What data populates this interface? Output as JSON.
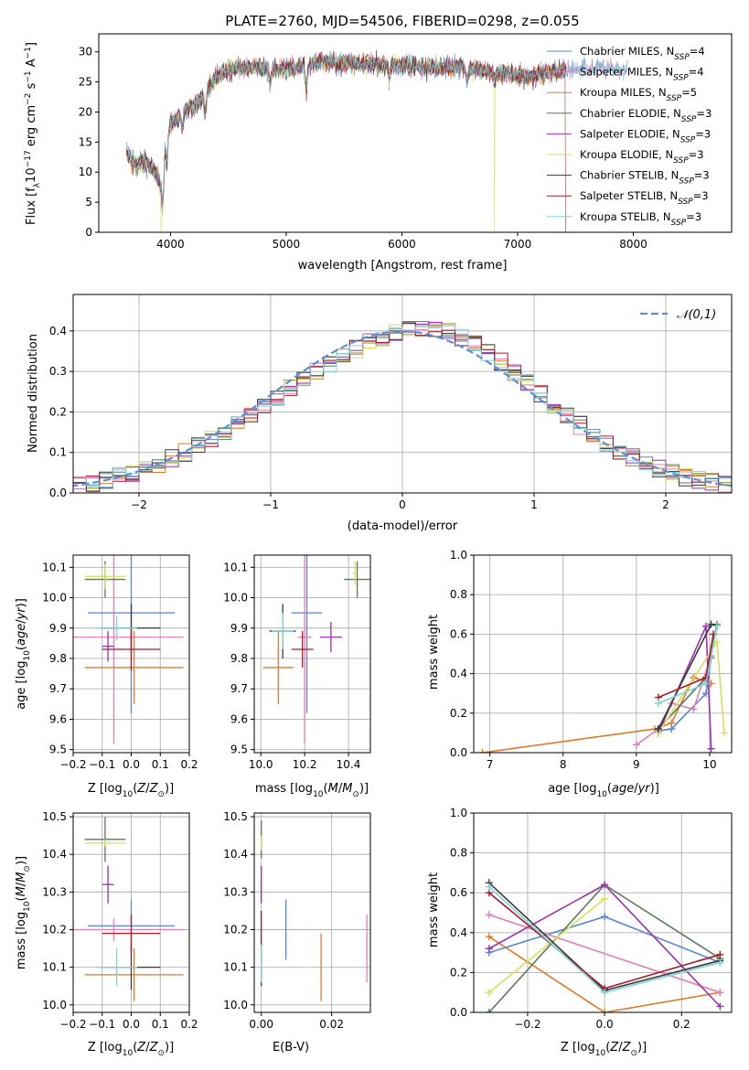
{
  "chart_data": [
    {
      "type": "line",
      "title": "PLATE=2760, MJD=54506, FIBERID=0298, z=0.055",
      "xlabel": "wavelength [Angstrom, rest frame]",
      "ylabel": "Flux [f_λ10^{-17} erg cm^{-2} s^{-1} A^{-1}]",
      "xlim": [
        3380,
        8850
      ],
      "ylim": [
        0,
        33
      ],
      "xticks": [
        "4000",
        "5000",
        "6000",
        "7000",
        "8000"
      ],
      "yticks": [
        "0",
        "5",
        "10",
        "15",
        "20",
        "25",
        "30"
      ],
      "legend_position": "top-right",
      "continuum": {
        "x": [
          3620,
          3700,
          3780,
          3860,
          3920,
          3960,
          4000,
          4100,
          4200,
          4300,
          4400,
          4500,
          4700,
          4900,
          5100,
          5300,
          5600,
          5900,
          6200,
          6500,
          6800,
          7100,
          7400,
          7700,
          7950
        ],
        "y": [
          13,
          11,
          12,
          10,
          8,
          16,
          18,
          20,
          21,
          23,
          26,
          27,
          27.5,
          27,
          27.5,
          28.5,
          28,
          28,
          27.5,
          27.5,
          26.5,
          26,
          27,
          27.5,
          27
        ]
      },
      "series": [
        {
          "name": "Chabrier MILES, N_SSP=4",
          "color": "#5b84d6"
        },
        {
          "name": "Salpeter MILES, N_SSP=4",
          "color": "#e07fb5"
        },
        {
          "name": "Kroupa MILES, N_SSP=5",
          "color": "#dd7a28"
        },
        {
          "name": "Chabrier ELODIE, N_SSP=3",
          "color": "#5a7a5a"
        },
        {
          "name": "Salpeter ELODIE, N_SSP=3",
          "color": "#9b2fae"
        },
        {
          "name": "Kroupa ELODIE, N_SSP=3",
          "color": "#d3e05a"
        },
        {
          "name": "Chabrier STELIB, N_SSP=3",
          "color": "#3a3a3a"
        },
        {
          "name": "Salpeter STELIB, N_SSP=3",
          "color": "#a61c28"
        },
        {
          "name": "Kroupa STELIB, N_SSP=3",
          "color": "#7fd3d8"
        }
      ]
    },
    {
      "type": "line",
      "xlabel": "(data-model)/error",
      "ylabel": "Normed distribution",
      "xlim": [
        -2.5,
        2.5
      ],
      "ylim": [
        0,
        0.49
      ],
      "xticks": [
        "−2",
        "−1",
        "0",
        "1",
        "2"
      ],
      "yticks": [
        "0.0",
        "0.1",
        "0.2",
        "0.3",
        "0.4"
      ],
      "grid": true,
      "legend_position": "top-right",
      "reference_curve": {
        "name": "𝒩(0,1)",
        "color": "#5b8fd6"
      }
    },
    {
      "type": "scatter",
      "xlabel": "Z [log10(Z/Z⊙)]",
      "ylabel": "age  [log10(age/yr)]",
      "xlim": [
        -0.2,
        0.2
      ],
      "ylim": [
        9.49,
        10.14
      ],
      "xticks": [
        "−0.2",
        "−0.1",
        "0.0",
        "0.1",
        "0.2"
      ],
      "yticks": [
        "9.5",
        "9.6",
        "9.7",
        "9.8",
        "9.9",
        "10.0",
        "10.1"
      ],
      "points": [
        {
          "color": "#5b84d6",
          "x": 0.0,
          "xerr": 0.15,
          "y": 9.95,
          "yerr": 0.33
        },
        {
          "color": "#e07fb5",
          "x": -0.06,
          "xerr": 0.24,
          "y": 9.87,
          "yerr": 0.35
        },
        {
          "color": "#dd7a28",
          "x": 0.01,
          "xerr": 0.17,
          "y": 9.77,
          "yerr": 0.12
        },
        {
          "color": "#5a7a5a",
          "x": -0.09,
          "xerr": 0.07,
          "y": 10.06,
          "yerr": 0.06
        },
        {
          "color": "#9b2fae",
          "x": -0.08,
          "xerr": 0.02,
          "y": 9.84,
          "yerr": 0.05
        },
        {
          "color": "#d3e05a",
          "x": -0.09,
          "xerr": 0.07,
          "y": 10.07,
          "yerr": 0.04
        },
        {
          "color": "#3a3a3a",
          "x": 0.0,
          "xerr": 0.1,
          "y": 9.9,
          "yerr": 0.08
        },
        {
          "color": "#a61c28",
          "x": 0.0,
          "xerr": 0.1,
          "y": 9.83,
          "yerr": 0.07
        },
        {
          "color": "#7fd3d8",
          "x": -0.05,
          "xerr": 0.07,
          "y": 9.9,
          "yerr": 0.04
        }
      ]
    },
    {
      "type": "scatter",
      "xlabel": "mass [log10(M/M⊙)]",
      "xlim": [
        9.97,
        10.5
      ],
      "ylim": [
        9.49,
        10.14
      ],
      "xticks": [
        "10.0",
        "10.2",
        "10.4"
      ],
      "yticks": [
        "9.5",
        "9.6",
        "9.7",
        "9.8",
        "9.9",
        "10.0",
        "10.1"
      ],
      "points": [
        {
          "color": "#5b84d6",
          "x": 10.21,
          "xerr": 0.07,
          "y": 9.95,
          "yerr": 0.33
        },
        {
          "color": "#e07fb5",
          "x": 10.2,
          "xerr": 0.03,
          "y": 9.87,
          "yerr": 0.35
        },
        {
          "color": "#dd7a28",
          "x": 10.08,
          "xerr": 0.07,
          "y": 9.77,
          "yerr": 0.12
        },
        {
          "color": "#5a7a5a",
          "x": 10.44,
          "xerr": 0.06,
          "y": 10.06,
          "yerr": 0.06
        },
        {
          "color": "#9b2fae",
          "x": 10.32,
          "xerr": 0.05,
          "y": 9.87,
          "yerr": 0.05
        },
        {
          "color": "#d3e05a",
          "x": 10.43,
          "xerr": 0.01,
          "y": 10.08,
          "yerr": 0.04
        },
        {
          "color": "#3a3a3a",
          "x": 10.1,
          "xerr": 0.06,
          "y": 9.89,
          "yerr": 0.09
        },
        {
          "color": "#a61c28",
          "x": 10.19,
          "xerr": 0.05,
          "y": 9.83,
          "yerr": 0.06
        },
        {
          "color": "#7fd3d8",
          "x": 10.1,
          "xerr": 0.05,
          "y": 9.89,
          "yerr": 0.06
        }
      ]
    },
    {
      "type": "line",
      "xlabel": "age  [log10(age/yr)]",
      "ylabel": "mass weight",
      "xlim": [
        6.78,
        10.3
      ],
      "ylim": [
        0,
        1
      ],
      "xticks": [
        "7",
        "8",
        "9",
        "10"
      ],
      "yticks": [
        "0.0",
        "0.2",
        "0.4",
        "0.6",
        "0.8",
        "1.0"
      ],
      "grid": true,
      "series": [
        {
          "color": "#dd7a28",
          "x": [
            6.9,
            9.25,
            9.48,
            9.78,
            10.02
          ],
          "y": [
            0.0,
            0.12,
            0.15,
            0.38,
            0.35
          ]
        },
        {
          "color": "#5b84d6",
          "x": [
            9.3,
            9.48,
            9.95,
            10.02
          ],
          "y": [
            0.11,
            0.12,
            0.3,
            0.48
          ]
        },
        {
          "color": "#e07fb5",
          "x": [
            9.0,
            9.3,
            9.48,
            9.78,
            10.02
          ],
          "y": [
            0.04,
            0.12,
            0.25,
            0.22,
            0.49
          ]
        },
        {
          "color": "#5a7a5a",
          "x": [
            9.3,
            9.95,
            10.1
          ],
          "y": [
            0.12,
            0.38,
            0.65
          ]
        },
        {
          "color": "#9b2fae",
          "x": [
            9.3,
            9.95,
            10.02
          ],
          "y": [
            0.1,
            0.64,
            0.02
          ]
        },
        {
          "color": "#d3e05a",
          "x": [
            9.3,
            10.1,
            10.2
          ],
          "y": [
            0.1,
            0.56,
            0.1
          ]
        },
        {
          "color": "#3a3a3a",
          "x": [
            9.3,
            10.02,
            10.1
          ],
          "y": [
            0.12,
            0.65,
            0.64
          ]
        },
        {
          "color": "#a61c28",
          "x": [
            9.3,
            9.95,
            10.05
          ],
          "y": [
            0.28,
            0.38,
            0.6
          ]
        },
        {
          "color": "#7fd3d8",
          "x": [
            9.3,
            9.95,
            10.1
          ],
          "y": [
            0.25,
            0.35,
            0.64
          ]
        }
      ]
    },
    {
      "type": "scatter",
      "xlabel": "Z [log10(Z/Z⊙)]",
      "ylabel": "mass [log10(M/M⊙)]",
      "xlim": [
        -0.2,
        0.2
      ],
      "ylim": [
        9.98,
        10.51
      ],
      "xticks": [
        "−0.2",
        "−0.1",
        "0.0",
        "0.1",
        "0.2"
      ],
      "yticks": [
        "10.0",
        "10.1",
        "10.2",
        "10.3",
        "10.4",
        "10.5"
      ],
      "points": [
        {
          "color": "#5b84d6",
          "x": 0.0,
          "xerr": 0.15,
          "y": 10.21,
          "yerr": 0.07
        },
        {
          "color": "#e07fb5",
          "x": -0.06,
          "xerr": 0.24,
          "y": 10.2,
          "yerr": 0.03
        },
        {
          "color": "#dd7a28",
          "x": 0.01,
          "xerr": 0.17,
          "y": 10.08,
          "yerr": 0.07
        },
        {
          "color": "#5a7a5a",
          "x": -0.09,
          "xerr": 0.07,
          "y": 10.44,
          "yerr": 0.06
        },
        {
          "color": "#9b2fae",
          "x": -0.08,
          "xerr": 0.02,
          "y": 10.32,
          "yerr": 0.05
        },
        {
          "color": "#d3e05a",
          "x": -0.09,
          "xerr": 0.07,
          "y": 10.43,
          "yerr": 0.01
        },
        {
          "color": "#3a3a3a",
          "x": 0.0,
          "xerr": 0.1,
          "y": 10.1,
          "yerr": 0.06
        },
        {
          "color": "#a61c28",
          "x": 0.0,
          "xerr": 0.1,
          "y": 10.19,
          "yerr": 0.05
        },
        {
          "color": "#7fd3d8",
          "x": -0.05,
          "xerr": 0.07,
          "y": 10.1,
          "yerr": 0.05
        }
      ]
    },
    {
      "type": "scatter",
      "xlabel": "E(B-V)",
      "xlim": [
        -0.002,
        0.031
      ],
      "ylim": [
        9.98,
        10.51
      ],
      "xticks": [
        "0.00",
        "0.02"
      ],
      "yticks": [
        "10.0",
        "10.1",
        "10.2",
        "10.3",
        "10.4",
        "10.5"
      ],
      "points": [
        {
          "color": "#5b84d6",
          "x": 0.007,
          "y": 10.2,
          "yerr": 0.08
        },
        {
          "color": "#e07fb5",
          "x": 0.03,
          "y": 10.15,
          "yerr": 0.09
        },
        {
          "color": "#dd7a28",
          "x": 0.017,
          "y": 10.1,
          "yerr": 0.09
        },
        {
          "color": "#5a7a5a",
          "x": 0.0,
          "y": 10.44,
          "yerr": 0.05
        },
        {
          "color": "#9b2fae",
          "x": 0.0,
          "y": 10.32,
          "yerr": 0.05
        },
        {
          "color": "#d3e05a",
          "x": 0.0,
          "y": 10.43,
          "yerr": 0.02
        },
        {
          "color": "#3a3a3a",
          "x": 0.0,
          "y": 10.1,
          "yerr": 0.05
        },
        {
          "color": "#a61c28",
          "x": 0.0,
          "y": 10.2,
          "yerr": 0.05
        },
        {
          "color": "#7fd3d8",
          "x": 0.0,
          "y": 10.11,
          "yerr": 0.05
        }
      ]
    },
    {
      "type": "line",
      "xlabel": "Z [log10(Z/Z⊙)]",
      "ylabel": "mass weight",
      "xlim": [
        -0.34,
        0.33
      ],
      "ylim": [
        0,
        1
      ],
      "xticks": [
        "−0.2",
        "0.0",
        "0.2"
      ],
      "yticks": [
        "0.0",
        "0.2",
        "0.4",
        "0.6",
        "0.8",
        "1.0"
      ],
      "grid": true,
      "series": [
        {
          "color": "#dd7a28",
          "x": [
            -0.3,
            0.0,
            0.3
          ],
          "y": [
            0.38,
            0.0,
            0.1
          ]
        },
        {
          "color": "#5b84d6",
          "x": [
            -0.3,
            0.0,
            0.3
          ],
          "y": [
            0.3,
            0.48,
            0.25
          ]
        },
        {
          "color": "#e07fb5",
          "x": [
            -0.3,
            0.3
          ],
          "y": [
            0.49,
            0.1
          ]
        },
        {
          "color": "#5a7a5a",
          "x": [
            -0.3,
            0.0,
            0.3
          ],
          "y": [
            0.0,
            0.64,
            0.27
          ]
        },
        {
          "color": "#9b2fae",
          "x": [
            -0.3,
            0.0,
            0.3
          ],
          "y": [
            0.32,
            0.64,
            0.03
          ]
        },
        {
          "color": "#d3e05a",
          "x": [
            -0.3,
            0.0
          ],
          "y": [
            0.1,
            0.57
          ]
        },
        {
          "color": "#3a3a3a",
          "x": [
            -0.3,
            0.0,
            0.3
          ],
          "y": [
            0.65,
            0.11,
            0.26
          ]
        },
        {
          "color": "#a61c28",
          "x": [
            -0.3,
            0.0,
            0.3
          ],
          "y": [
            0.6,
            0.12,
            0.29
          ]
        },
        {
          "color": "#7fd3d8",
          "x": [
            -0.3,
            0.0,
            0.3
          ],
          "y": [
            0.63,
            0.1,
            0.25
          ]
        }
      ]
    }
  ]
}
